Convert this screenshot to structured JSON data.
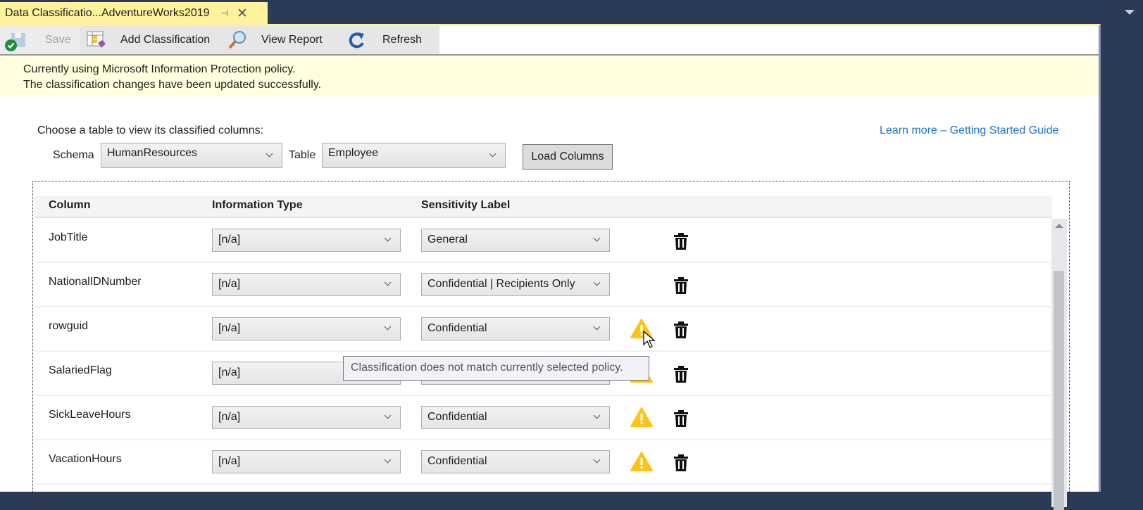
{
  "tab": {
    "title": "Data Classificatio...AdventureWorks2019",
    "pin": "⊣",
    "close": "✕"
  },
  "toolbar": {
    "save": "Save",
    "add_classification": "Add Classification",
    "view_report": "View Report",
    "refresh": "Refresh"
  },
  "infobar": {
    "line1": "Currently using Microsoft Information Protection policy.",
    "line2": "The classification changes have been updated successfully.",
    "icon": "check-circle-icon"
  },
  "selector": {
    "prompt": "Choose a table to view its classified columns:",
    "schema_label": "Schema",
    "schema_value": "HumanResources",
    "table_label": "Table",
    "table_value": "Employee",
    "load_button": "Load Columns",
    "learn_more": "Learn more – Getting Started Guide"
  },
  "grid": {
    "headers": {
      "column": "Column",
      "info_type": "Information Type",
      "sensitivity": "Sensitivity Label"
    },
    "rows": [
      {
        "column": "JobTitle",
        "info_type": "[n/a]",
        "sensitivity": "General",
        "warning": false
      },
      {
        "column": "NationalIDNumber",
        "info_type": "[n/a]",
        "sensitivity": "Confidential | Recipients Only",
        "warning": false
      },
      {
        "column": "rowguid",
        "info_type": "[n/a]",
        "sensitivity": "Confidential",
        "warning": true
      },
      {
        "column": "SalariedFlag",
        "info_type": "[n/a]",
        "sensitivity": "",
        "warning": true
      },
      {
        "column": "SickLeaveHours",
        "info_type": "[n/a]",
        "sensitivity": "Confidential",
        "warning": true
      },
      {
        "column": "VacationHours",
        "info_type": "[n/a]",
        "sensitivity": "Confidential",
        "warning": true
      }
    ]
  },
  "tooltip": "Classification does not match currently selected policy.",
  "colors": {
    "tab": "#fff29d",
    "frame": "#2b3a55",
    "infobar": "#ffffe0",
    "link": "#1e74d6",
    "warning": "#fcc419"
  }
}
